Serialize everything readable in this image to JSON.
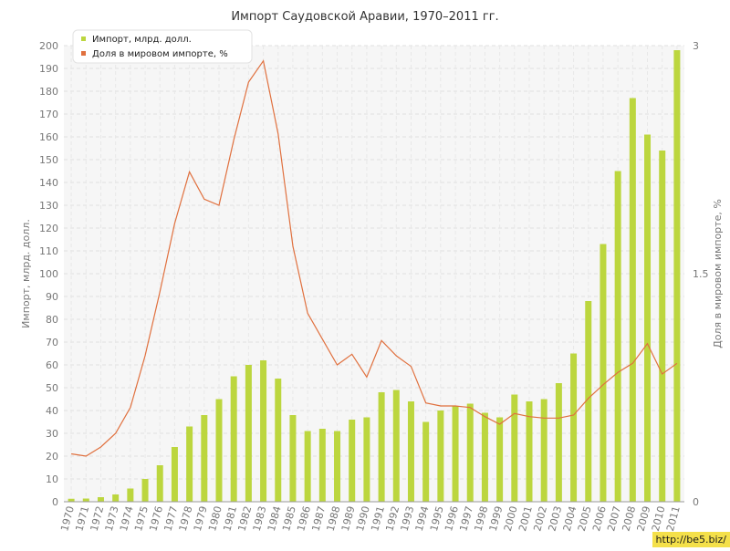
{
  "chart_data": {
    "type": "bar",
    "title": "Импорт Саудовской Аравии, 1970–2011 гг.",
    "ylabel": "Импорт, млрд. долл.",
    "y2label": "Доля в мировом импорте, %",
    "ylim": [
      0,
      200
    ],
    "y2lim": [
      0,
      3
    ],
    "yticks": [
      0,
      10,
      20,
      30,
      40,
      50,
      60,
      70,
      80,
      90,
      100,
      110,
      120,
      130,
      140,
      150,
      160,
      170,
      180,
      190,
      200
    ],
    "y2ticks": [
      "0",
      "1.5",
      "3"
    ],
    "grid": true,
    "legend": "top-left",
    "categories": [
      "1970",
      "1971",
      "1972",
      "1973",
      "1974",
      "1975",
      "1976",
      "1977",
      "1978",
      "1979",
      "1980",
      "1981",
      "1982",
      "1983",
      "1984",
      "1985",
      "1986",
      "1987",
      "1988",
      "1989",
      "1990",
      "1991",
      "1992",
      "1993",
      "1994",
      "1995",
      "1996",
      "1997",
      "1998",
      "1999",
      "2000",
      "2001",
      "2002",
      "2003",
      "2004",
      "2005",
      "2006",
      "2007",
      "2008",
      "2009",
      "2010",
      "2011"
    ],
    "series": [
      {
        "name": "Импорт, млрд. долл.",
        "type": "bar",
        "axis": "left",
        "color": "#bcd63e",
        "values": [
          1.3,
          1.4,
          2,
          3.2,
          5.8,
          10,
          16,
          24,
          33,
          38,
          45,
          55,
          60,
          62,
          54,
          38,
          31,
          32,
          31,
          36,
          37,
          48,
          49,
          44,
          35,
          40,
          42,
          43,
          39,
          37,
          47,
          44,
          45,
          52,
          65,
          88,
          113,
          145,
          177,
          161,
          154,
          198
        ]
      },
      {
        "name": "Доля в мировом импорте, %",
        "type": "line",
        "axis": "right",
        "color": "#e0703e",
        "values": [
          0.315,
          0.3,
          0.36,
          0.45,
          0.62,
          0.96,
          1.38,
          1.83,
          2.17,
          1.99,
          1.95,
          2.38,
          2.76,
          2.9,
          2.42,
          1.68,
          1.24,
          1.07,
          0.9,
          0.97,
          0.82,
          1.06,
          0.96,
          0.89,
          0.65,
          0.63,
          0.63,
          0.62,
          0.56,
          0.51,
          0.58,
          0.56,
          0.55,
          0.55,
          0.57,
          0.68,
          0.77,
          0.85,
          0.91,
          1.04,
          0.84,
          0.91
        ]
      }
    ]
  },
  "watermark": "http://be5.biz/"
}
